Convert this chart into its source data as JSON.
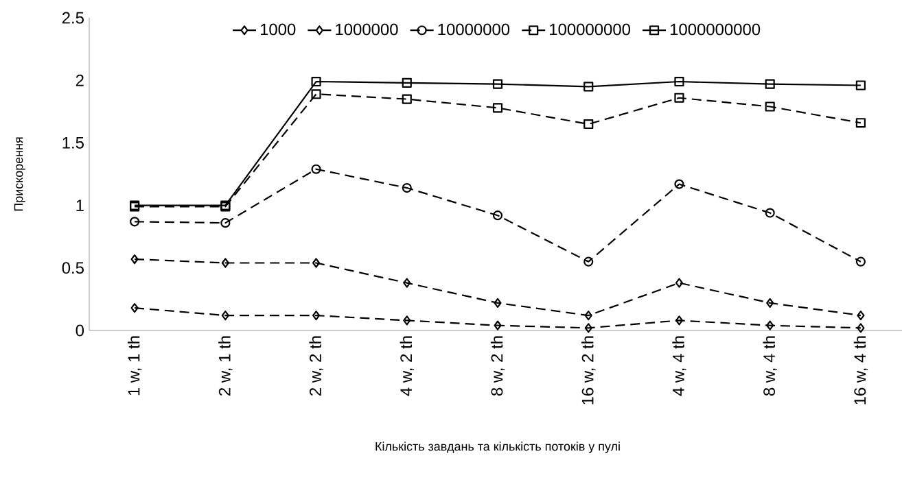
{
  "chart_data": {
    "type": "line",
    "ylabel": "Прискорення",
    "xlabel": "Кількість завдань та кількість потоків у пулі",
    "categories": [
      "1 w, 1 th",
      "2 w, 1 th",
      "2 w, 2 th",
      "4 w, 2 th",
      "8 w, 2 th",
      "16 w, 2 th",
      "4 w, 4 th",
      "8 w, 4 th",
      "16 w, 4 th"
    ],
    "series": [
      {
        "name": "1000",
        "color": "#000000",
        "marker": "diamond",
        "line_style": "dashed",
        "values": [
          0.18,
          0.12,
          0.12,
          0.08,
          0.04,
          0.02,
          0.08,
          0.04,
          0.02
        ]
      },
      {
        "name": "1000000",
        "color": "#000000",
        "marker": "diamond",
        "line_style": "dashed",
        "values": [
          0.57,
          0.54,
          0.54,
          0.38,
          0.22,
          0.12,
          0.38,
          0.22,
          0.12
        ]
      },
      {
        "name": "10000000",
        "color": "#000000",
        "marker": "circle",
        "line_style": "dashed",
        "values": [
          0.87,
          0.86,
          1.29,
          1.14,
          0.92,
          0.55,
          1.17,
          0.94,
          0.55
        ]
      },
      {
        "name": "100000000",
        "color": "#000000",
        "marker": "square",
        "line_style": "dashed",
        "values": [
          0.99,
          0.99,
          1.89,
          1.85,
          1.78,
          1.65,
          1.86,
          1.79,
          1.66
        ]
      },
      {
        "name": "1000000000",
        "color": "#000000",
        "marker": "square",
        "line_style": "solid",
        "values": [
          1.0,
          1.0,
          1.99,
          1.98,
          1.97,
          1.95,
          1.99,
          1.97,
          1.96
        ]
      }
    ],
    "ylim": [
      0,
      2.5
    ],
    "yticks": [
      0,
      0.5,
      1,
      1.5,
      2,
      2.5
    ],
    "grid": false,
    "legend": "top"
  }
}
